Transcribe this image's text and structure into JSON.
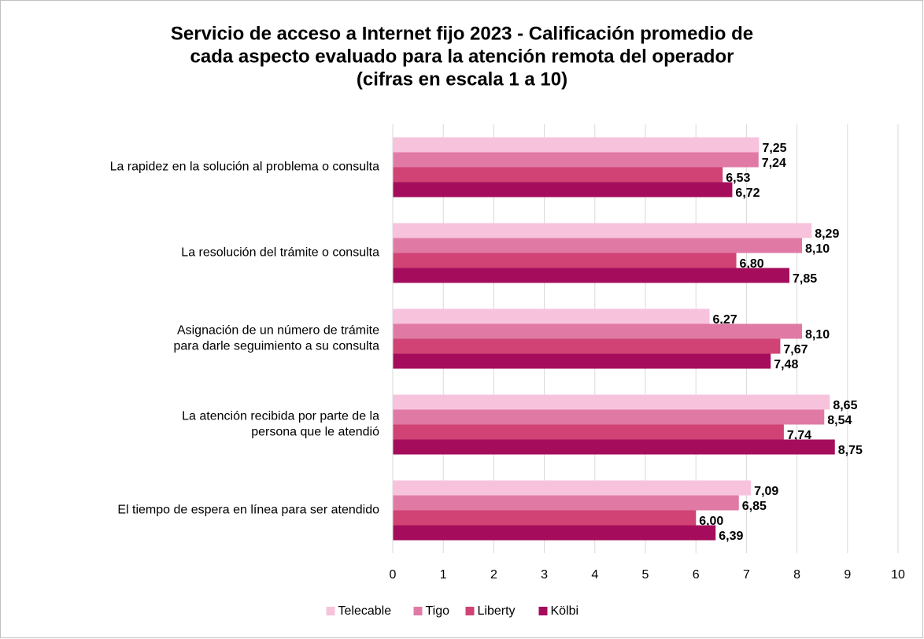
{
  "chart_data": {
    "type": "barh",
    "title": [
      "Servicio de acceso a Internet fijo 2023 - Calificación promedio de",
      "cada aspecto evaluado para la atención remota del operador",
      "(cifras en escala 1 a 10)"
    ],
    "categories": [
      [
        "La rapidez en la solución al problema o consulta"
      ],
      [
        "La resolución del trámite o consulta"
      ],
      [
        "Asignación de un número de trámite",
        "para darle seguimiento a su consulta"
      ],
      [
        "La atención recibida por parte de la",
        "persona que le atendió"
      ],
      [
        "El tiempo de espera en línea para ser atendido"
      ]
    ],
    "series": [
      {
        "name": "Telecable",
        "color": "#f7c3dc",
        "values": [
          7.25,
          8.29,
          6.27,
          8.65,
          7.09
        ],
        "value_labels": [
          "7,25",
          "8,29",
          "6,27",
          "8,65",
          "7,09"
        ]
      },
      {
        "name": "Tigo",
        "color": "#e07aa5",
        "values": [
          7.24,
          8.1,
          8.1,
          8.54,
          6.85
        ],
        "value_labels": [
          "7,24",
          "8,10",
          "8,10",
          "8,54",
          "6,85"
        ]
      },
      {
        "name": "Liberty",
        "color": "#d04374",
        "values": [
          6.53,
          6.8,
          7.67,
          7.74,
          6.0
        ],
        "value_labels": [
          "6,53",
          "6,80",
          "7,67",
          "7,74",
          "6,00"
        ]
      },
      {
        "name": "Kölbi",
        "color": "#a50d5c",
        "values": [
          6.72,
          7.85,
          7.48,
          8.75,
          6.39
        ],
        "value_labels": [
          "6,72",
          "7,85",
          "7,48",
          "8,75",
          "6,39"
        ]
      }
    ],
    "xlim": [
      0,
      10
    ],
    "xticks": [
      0,
      1,
      2,
      3,
      4,
      5,
      6,
      7,
      8,
      9,
      10
    ],
    "grid": true,
    "legend": "bottom"
  }
}
